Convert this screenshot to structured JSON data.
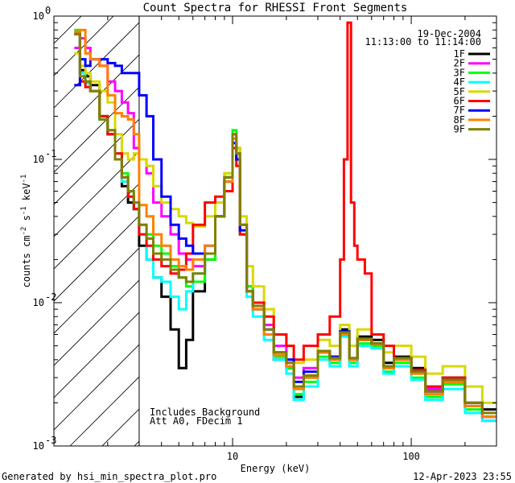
{
  "chart_data": {
    "type": "line",
    "title": "Count Spectra for RHESSI Front Segments",
    "xlabel": "Energy (keV)",
    "ylabel": "counts cm^-2 s^-1 keV^-1",
    "xscale": "log",
    "yscale": "log",
    "xlim": [
      1.0,
      300.0
    ],
    "ylim": [
      0.001,
      1.0
    ],
    "x_ticks": [
      {
        "value": 10,
        "label": "10"
      },
      {
        "value": 100,
        "label": "100"
      }
    ],
    "y_ticks": [
      {
        "value": 1.0,
        "base": "10",
        "exp": "0"
      },
      {
        "value": 0.1,
        "base": "10",
        "exp": "-1"
      },
      {
        "value": 0.01,
        "base": "10",
        "exp": "-2"
      },
      {
        "value": 0.001,
        "base": "10",
        "exp": "-3"
      }
    ],
    "legend_placement": "top-right",
    "date_label": "19-Dec-2004",
    "time_label": "11:13:00 to 11:14:00",
    "annotations": [
      "Includes Background",
      "Att A0, FDecim 1"
    ],
    "hatch_region": {
      "x_range": [
        1.0,
        3.0
      ]
    },
    "footer_left": "Generated by hsi_min_spectra_plot.pro",
    "footer_right": "12-Apr-2023 23:55",
    "series": [
      {
        "name": "1F",
        "color": "#000000",
        "edges": [
          1.3,
          1.4,
          1.5,
          1.6,
          1.8,
          2.0,
          2.2,
          2.4,
          2.6,
          2.8,
          3.0,
          3.3,
          3.6,
          4.0,
          4.5,
          5.0,
          5.5,
          6.0,
          7.0,
          8.0,
          9.0,
          10.0,
          10.5,
          11.0,
          12.0,
          13.0,
          15.0,
          17.0,
          20.0,
          22.0,
          25.0,
          30.0,
          35.0,
          40.0,
          45.0,
          50.0,
          60.0,
          70.0,
          80.0,
          100.0,
          120.0,
          150.0,
          200.0,
          250.0,
          300.0
        ],
        "values": [
          0.75,
          0.42,
          0.38,
          0.33,
          0.2,
          0.15,
          0.1,
          0.065,
          0.05,
          0.045,
          0.025,
          0.02,
          0.015,
          0.011,
          0.0065,
          0.0035,
          0.0055,
          0.012,
          0.02,
          0.04,
          0.075,
          0.14,
          0.1,
          0.03,
          0.012,
          0.009,
          0.006,
          0.004,
          0.0035,
          0.0022,
          0.003,
          0.0045,
          0.0042,
          0.0065,
          0.004,
          0.0058,
          0.0055,
          0.0038,
          0.0042,
          0.0035,
          0.0025,
          0.003,
          0.002,
          0.0018
        ]
      },
      {
        "name": "2F",
        "color": "#ff00ff",
        "edges": [
          1.3,
          1.4,
          1.5,
          1.6,
          1.8,
          2.0,
          2.2,
          2.4,
          2.6,
          2.8,
          3.0,
          3.3,
          3.6,
          4.0,
          4.5,
          5.0,
          5.5,
          6.0,
          7.0,
          8.0,
          9.0,
          10.0,
          10.5,
          11.0,
          12.0,
          13.0,
          15.0,
          17.0,
          20.0,
          22.0,
          25.0,
          30.0,
          35.0,
          40.0,
          45.0,
          50.0,
          60.0,
          70.0,
          80.0,
          100.0,
          120.0,
          150.0,
          200.0,
          250.0,
          300.0
        ],
        "values": [
          0.6,
          0.7,
          0.6,
          0.5,
          0.45,
          0.35,
          0.3,
          0.25,
          0.21,
          0.12,
          0.1,
          0.08,
          0.05,
          0.04,
          0.03,
          0.022,
          0.02,
          0.018,
          0.022,
          0.04,
          0.07,
          0.15,
          0.12,
          0.035,
          0.013,
          0.01,
          0.007,
          0.005,
          0.004,
          0.003,
          0.0035,
          0.0045,
          0.004,
          0.006,
          0.004,
          0.0055,
          0.005,
          0.0035,
          0.004,
          0.0032,
          0.0025,
          0.0028,
          0.002,
          0.0015
        ]
      },
      {
        "name": "3F",
        "color": "#00ff00",
        "edges": [
          1.3,
          1.4,
          1.5,
          1.6,
          1.8,
          2.0,
          2.2,
          2.4,
          2.6,
          2.8,
          3.0,
          3.3,
          3.6,
          4.0,
          4.5,
          5.0,
          5.5,
          6.0,
          7.0,
          8.0,
          9.0,
          10.0,
          10.5,
          11.0,
          12.0,
          13.0,
          15.0,
          17.0,
          20.0,
          22.0,
          25.0,
          30.0,
          35.0,
          40.0,
          45.0,
          50.0,
          60.0,
          70.0,
          80.0,
          100.0,
          120.0,
          150.0,
          200.0,
          250.0,
          300.0
        ],
        "values": [
          0.8,
          0.4,
          0.35,
          0.3,
          0.2,
          0.16,
          0.11,
          0.08,
          0.06,
          0.05,
          0.035,
          0.03,
          0.025,
          0.022,
          0.018,
          0.015,
          0.013,
          0.014,
          0.02,
          0.04,
          0.08,
          0.16,
          0.12,
          0.035,
          0.013,
          0.009,
          0.006,
          0.0042,
          0.0035,
          0.0023,
          0.0028,
          0.0042,
          0.0038,
          0.006,
          0.0038,
          0.0052,
          0.005,
          0.0033,
          0.0038,
          0.003,
          0.0022,
          0.0027,
          0.0018,
          0.0016
        ]
      },
      {
        "name": "4F",
        "color": "#00ffff",
        "edges": [
          1.3,
          1.4,
          1.5,
          1.6,
          1.8,
          2.0,
          2.2,
          2.4,
          2.6,
          2.8,
          3.0,
          3.3,
          3.6,
          4.0,
          4.5,
          5.0,
          5.5,
          6.0,
          7.0,
          8.0,
          9.0,
          10.0,
          10.5,
          11.0,
          12.0,
          13.0,
          15.0,
          17.0,
          20.0,
          22.0,
          25.0,
          30.0,
          35.0,
          40.0,
          45.0,
          50.0,
          60.0,
          70.0,
          80.0,
          100.0,
          120.0,
          150.0,
          200.0,
          250.0,
          300.0
        ],
        "values": [
          0.78,
          0.4,
          0.34,
          0.3,
          0.19,
          0.15,
          0.1,
          0.07,
          0.055,
          0.045,
          0.03,
          0.02,
          0.015,
          0.014,
          0.011,
          0.009,
          0.012,
          0.016,
          0.022,
          0.04,
          0.07,
          0.13,
          0.1,
          0.03,
          0.011,
          0.008,
          0.0055,
          0.004,
          0.0032,
          0.0021,
          0.0026,
          0.004,
          0.0036,
          0.0058,
          0.0036,
          0.005,
          0.0048,
          0.0032,
          0.0036,
          0.0029,
          0.0021,
          0.0025,
          0.0017,
          0.0015
        ]
      },
      {
        "name": "5F",
        "color": "#d8d800",
        "edges": [
          1.3,
          1.4,
          1.5,
          1.6,
          1.8,
          2.0,
          2.2,
          2.4,
          2.6,
          2.8,
          3.0,
          3.3,
          3.6,
          4.0,
          4.5,
          5.0,
          5.5,
          6.0,
          7.0,
          8.0,
          9.0,
          10.0,
          10.5,
          11.0,
          12.0,
          13.0,
          15.0,
          17.0,
          20.0,
          22.0,
          25.0,
          30.0,
          35.0,
          40.0,
          45.0,
          50.0,
          60.0,
          70.0,
          80.0,
          100.0,
          120.0,
          150.0,
          200.0,
          250.0,
          300.0
        ],
        "values": [
          0.55,
          0.45,
          0.4,
          0.35,
          0.3,
          0.25,
          0.15,
          0.11,
          0.1,
          0.11,
          0.1,
          0.09,
          0.065,
          0.05,
          0.045,
          0.04,
          0.036,
          0.034,
          0.04,
          0.05,
          0.08,
          0.15,
          0.12,
          0.04,
          0.018,
          0.013,
          0.009,
          0.006,
          0.005,
          0.0038,
          0.004,
          0.0055,
          0.005,
          0.007,
          0.005,
          0.0065,
          0.006,
          0.0045,
          0.005,
          0.0042,
          0.0032,
          0.0036,
          0.0026,
          0.002
        ]
      },
      {
        "name": "6F",
        "color": "#ff0000",
        "edges": [
          1.3,
          1.4,
          1.5,
          1.6,
          1.8,
          2.0,
          2.2,
          2.4,
          2.6,
          2.8,
          3.0,
          3.3,
          3.6,
          4.0,
          4.5,
          5.0,
          5.5,
          6.0,
          7.0,
          8.0,
          9.0,
          10.0,
          10.5,
          11.0,
          12.0,
          13.0,
          15.0,
          17.0,
          20.0,
          22.0,
          25.0,
          30.0,
          35.0,
          40.0,
          42.0,
          44.0,
          46.0,
          48.0,
          50.0,
          55.0,
          60.0,
          70.0,
          80.0,
          100.0,
          120.0,
          150.0,
          200.0,
          250.0,
          300.0
        ],
        "values": [
          0.75,
          0.35,
          0.32,
          0.3,
          0.2,
          0.15,
          0.11,
          0.075,
          0.055,
          0.045,
          0.03,
          0.025,
          0.02,
          0.018,
          0.016,
          0.017,
          0.022,
          0.035,
          0.05,
          0.055,
          0.06,
          0.12,
          0.09,
          0.03,
          0.012,
          0.01,
          0.008,
          0.006,
          0.005,
          0.004,
          0.005,
          0.006,
          0.008,
          0.02,
          0.1,
          0.9,
          0.05,
          0.025,
          0.02,
          0.016,
          0.006,
          0.005,
          0.004,
          0.0034,
          0.0026,
          0.003,
          0.002,
          0.0017
        ]
      },
      {
        "name": "7F",
        "color": "#0000ff",
        "edges": [
          1.3,
          1.4,
          1.5,
          1.6,
          1.8,
          2.0,
          2.2,
          2.4,
          2.6,
          2.8,
          3.0,
          3.3,
          3.6,
          4.0,
          4.5,
          5.0,
          5.5,
          6.0,
          7.0,
          8.0,
          9.0,
          10.0,
          10.5,
          11.0,
          12.0,
          13.0,
          15.0,
          17.0,
          20.0,
          22.0,
          25.0,
          30.0,
          35.0,
          40.0,
          45.0,
          50.0,
          60.0,
          70.0,
          80.0,
          100.0,
          120.0,
          150.0,
          200.0,
          250.0,
          300.0
        ],
        "values": [
          0.33,
          0.5,
          0.45,
          0.5,
          0.5,
          0.47,
          0.45,
          0.4,
          0.4,
          0.4,
          0.28,
          0.2,
          0.1,
          0.055,
          0.035,
          0.028,
          0.025,
          0.022,
          0.025,
          0.04,
          0.07,
          0.13,
          0.1,
          0.032,
          0.012,
          0.009,
          0.0065,
          0.0045,
          0.004,
          0.0028,
          0.0033,
          0.0046,
          0.0042,
          0.0063,
          0.0041,
          0.0055,
          0.0052,
          0.0036,
          0.0041,
          0.0033,
          0.0024,
          0.0029,
          0.0019,
          0.0016
        ]
      },
      {
        "name": "8F",
        "color": "#ff8000",
        "edges": [
          1.3,
          1.4,
          1.5,
          1.6,
          1.8,
          2.0,
          2.2,
          2.4,
          2.6,
          2.8,
          3.0,
          3.3,
          3.6,
          4.0,
          4.5,
          5.0,
          5.5,
          6.0,
          7.0,
          8.0,
          9.0,
          10.0,
          10.5,
          11.0,
          12.0,
          13.0,
          15.0,
          17.0,
          20.0,
          22.0,
          25.0,
          30.0,
          35.0,
          40.0,
          45.0,
          50.0,
          60.0,
          70.0,
          80.0,
          100.0,
          120.0,
          150.0,
          200.0,
          250.0,
          300.0
        ],
        "values": [
          0.78,
          0.8,
          0.55,
          0.5,
          0.45,
          0.28,
          0.21,
          0.2,
          0.19,
          0.15,
          0.048,
          0.04,
          0.03,
          0.025,
          0.02,
          0.018,
          0.017,
          0.02,
          0.025,
          0.04,
          0.07,
          0.14,
          0.11,
          0.035,
          0.012,
          0.009,
          0.006,
          0.0043,
          0.0036,
          0.0025,
          0.003,
          0.0045,
          0.004,
          0.006,
          0.004,
          0.0055,
          0.0051,
          0.0035,
          0.004,
          0.0032,
          0.0023,
          0.0028,
          0.0019,
          0.0016
        ]
      },
      {
        "name": "9F",
        "color": "#808000",
        "edges": [
          1.3,
          1.4,
          1.5,
          1.6,
          1.8,
          2.0,
          2.2,
          2.4,
          2.6,
          2.8,
          3.0,
          3.3,
          3.6,
          4.0,
          4.5,
          5.0,
          5.5,
          6.0,
          7.0,
          8.0,
          9.0,
          10.0,
          10.5,
          11.0,
          12.0,
          13.0,
          15.0,
          17.0,
          20.0,
          22.0,
          25.0,
          30.0,
          35.0,
          40.0,
          45.0,
          50.0,
          60.0,
          70.0,
          80.0,
          100.0,
          120.0,
          150.0,
          200.0,
          250.0,
          300.0
        ],
        "values": [
          0.75,
          0.38,
          0.35,
          0.3,
          0.19,
          0.16,
          0.1,
          0.075,
          0.06,
          0.05,
          0.035,
          0.028,
          0.022,
          0.02,
          0.017,
          0.015,
          0.014,
          0.016,
          0.022,
          0.04,
          0.075,
          0.15,
          0.11,
          0.035,
          0.012,
          0.0095,
          0.0065,
          0.0045,
          0.0038,
          0.0026,
          0.0031,
          0.0046,
          0.0041,
          0.0062,
          0.0041,
          0.0056,
          0.0052,
          0.0036,
          0.0041,
          0.0033,
          0.0024,
          0.0029,
          0.002,
          0.0017
        ]
      }
    ]
  }
}
